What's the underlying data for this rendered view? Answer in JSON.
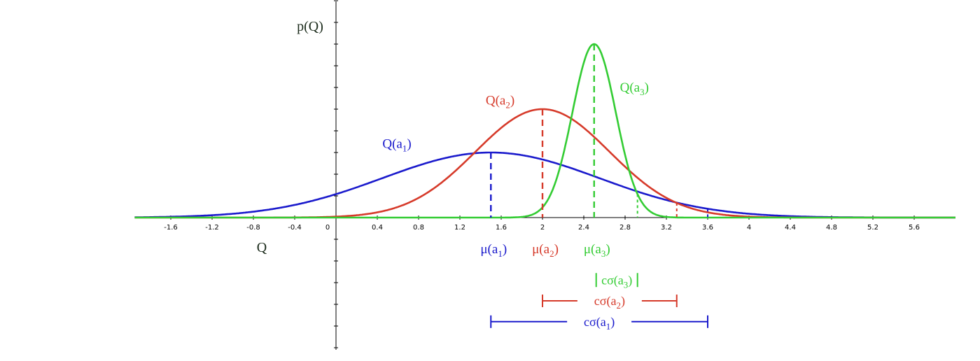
{
  "chart_data": {
    "type": "line",
    "ylabel": "p(Q)",
    "xlabel": "Q",
    "xlim": [
      -1.95,
      6.0
    ],
    "ylim": [
      -1.5,
      2.5
    ],
    "x_ticks": [
      -1.6,
      -1.2,
      -0.8,
      -0.4,
      0,
      0.4,
      0.8,
      1.2,
      1.6,
      2,
      2.4,
      2.8,
      3.2,
      3.6,
      4,
      4.4,
      4.8,
      5.2,
      5.6
    ],
    "y_tick_step": 0.25,
    "grid": false,
    "legend": "none",
    "series": [
      {
        "name": "Q(a1)",
        "label_main": "Q(a",
        "label_sub": "1",
        "label_close": ")",
        "color": "#1a1acc",
        "mu": 1.5,
        "sigma": 1.05,
        "peak": 0.75,
        "label_at": [
          0.45,
          0.85
        ],
        "mu_label_main": "μ(a",
        "mu_label_sub": "1",
        "mu_label_close": ")",
        "sigma_label_main": "cσ(a",
        "sigma_label_sub": "1",
        "sigma_label_close": ")",
        "bracket": [
          1.5,
          3.6
        ],
        "bracket_y": -1.2
      },
      {
        "name": "Q(a2)",
        "label_main": "Q(a",
        "label_sub": "2",
        "label_close": ")",
        "color": "#d63a2a",
        "mu": 2.0,
        "sigma": 0.65,
        "peak": 1.25,
        "label_at": [
          1.45,
          1.35
        ],
        "mu_label_main": "μ(a",
        "mu_label_sub": "2",
        "mu_label_close": ")",
        "sigma_label_main": "cσ(a",
        "sigma_label_sub": "2",
        "sigma_label_close": ")",
        "bracket": [
          2.0,
          3.3
        ],
        "bracket_y": -0.96
      },
      {
        "name": "Q(a3)",
        "label_main": "Q(a",
        "label_sub": "3",
        "label_close": ")",
        "color": "#33cc33",
        "mu": 2.5,
        "sigma": 0.21,
        "peak": 2.0,
        "label_at": [
          2.75,
          1.5
        ],
        "mu_label_main": "μ(a",
        "mu_label_sub": "3",
        "mu_label_close": ")",
        "sigma_label_main": "cσ(a",
        "sigma_label_sub": "3",
        "sigma_label_close": ")",
        "bracket": [
          2.52,
          2.92
        ],
        "bracket_y": -0.72
      }
    ]
  }
}
